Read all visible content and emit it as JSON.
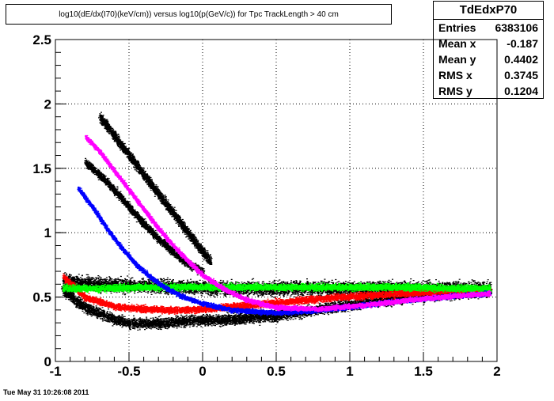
{
  "title": "log10(dE/dx(I70)(keV/cm)) versus log10(p(GeV/c)) for Tpc TrackLength > 40 cm",
  "footer": "Tue May 31 10:26:08 2011",
  "stats": {
    "name": "TdEdxP70",
    "rows": [
      {
        "label": "Entries",
        "value": "6383106"
      },
      {
        "label": "Mean x",
        "value": "-0.187"
      },
      {
        "label": "Mean y",
        "value": "0.4402"
      },
      {
        "label": "RMS x",
        "value": "0.3745"
      },
      {
        "label": "RMS y",
        "value": "0.1204"
      }
    ]
  },
  "chart_data": {
    "type": "scatter",
    "xlim": [
      -1,
      2
    ],
    "ylim": [
      0,
      2.5
    ],
    "x_ticks": [
      "-1",
      "-0.5",
      "0",
      "0.5",
      "1",
      "1.5",
      "2"
    ],
    "y_ticks": [
      "0",
      "0.5",
      "1",
      "1.5",
      "2",
      "2.5"
    ],
    "grid": true,
    "series": [
      {
        "color": "#000000",
        "x": [
          -0.95,
          -0.8,
          -0.6,
          -0.5,
          -0.3,
          -0.1,
          0.2,
          0.5,
          0.8,
          1.1,
          1.4,
          1.7,
          1.95
        ],
        "y": [
          0.55,
          0.42,
          0.33,
          0.3,
          0.3,
          0.32,
          0.33,
          0.36,
          0.41,
          0.46,
          0.5,
          0.53,
          0.55
        ],
        "width": 0.08
      },
      {
        "color": "#000000",
        "x": [
          -0.7,
          -0.6,
          -0.5,
          -0.4,
          -0.3,
          -0.2,
          -0.1,
          0.0,
          0.05
        ],
        "y": [
          1.9,
          1.75,
          1.6,
          1.45,
          1.3,
          1.15,
          1.0,
          0.85,
          0.78
        ],
        "width": 0.07
      },
      {
        "color": "#000000",
        "x": [
          -0.8,
          -0.7,
          -0.6,
          -0.5,
          -0.4,
          -0.3,
          -0.2,
          -0.1,
          0.0
        ],
        "y": [
          1.55,
          1.45,
          1.33,
          1.2,
          1.07,
          0.95,
          0.85,
          0.76,
          0.7
        ],
        "width": 0.06
      },
      {
        "color": "#000000",
        "x": [
          -0.95,
          -0.7,
          -0.4,
          -0.1,
          0.2,
          0.5,
          0.8,
          1.1,
          1.4,
          1.7,
          1.95
        ],
        "y": [
          0.63,
          0.6,
          0.59,
          0.58,
          0.57,
          0.57,
          0.57,
          0.57,
          0.57,
          0.57,
          0.57
        ],
        "width": 0.1
      },
      {
        "color": "#ff0000",
        "x": [
          -0.95,
          -0.8,
          -0.6,
          -0.4,
          -0.2,
          0.0,
          0.3,
          0.6,
          0.9,
          1.2,
          1.5,
          1.8,
          1.95
        ],
        "y": [
          0.66,
          0.5,
          0.43,
          0.41,
          0.4,
          0.41,
          0.44,
          0.47,
          0.5,
          0.52,
          0.54,
          0.55,
          0.56
        ],
        "width": 0.05
      },
      {
        "color": "#00ff00",
        "x": [
          -0.95,
          -0.7,
          -0.4,
          -0.1,
          0.2,
          0.5,
          0.8,
          1.1,
          1.4,
          1.7,
          1.95
        ],
        "y": [
          0.57,
          0.57,
          0.58,
          0.58,
          0.58,
          0.58,
          0.58,
          0.58,
          0.58,
          0.57,
          0.57
        ],
        "width": 0.05
      },
      {
        "color": "#0000ff",
        "x": [
          -0.85,
          -0.75,
          -0.65,
          -0.55,
          -0.45,
          -0.35,
          -0.25,
          -0.15,
          0.0,
          0.2,
          0.5,
          0.8,
          1.1,
          1.4,
          1.7,
          1.95
        ],
        "y": [
          1.35,
          1.2,
          1.03,
          0.88,
          0.75,
          0.65,
          0.57,
          0.51,
          0.45,
          0.4,
          0.38,
          0.4,
          0.44,
          0.48,
          0.51,
          0.53
        ],
        "width": 0.035
      },
      {
        "color": "#ff00ff",
        "x": [
          -0.8,
          -0.7,
          -0.6,
          -0.5,
          -0.4,
          -0.3,
          -0.2,
          -0.1,
          0.0,
          0.15,
          0.3,
          0.5,
          0.8,
          1.1,
          1.4,
          1.7,
          1.95
        ],
        "y": [
          1.75,
          1.63,
          1.48,
          1.33,
          1.18,
          1.03,
          0.9,
          0.78,
          0.67,
          0.56,
          0.48,
          0.42,
          0.41,
          0.44,
          0.48,
          0.51,
          0.53
        ],
        "width": 0.035
      }
    ]
  }
}
